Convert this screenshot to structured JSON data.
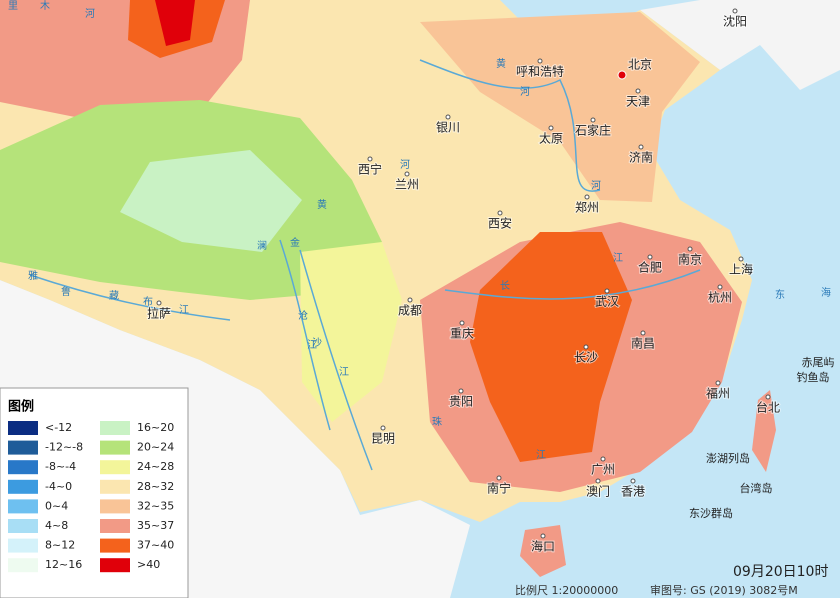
{
  "legend": {
    "title": "图例",
    "items": [
      {
        "label": "<-12",
        "color": "#0b2d82"
      },
      {
        "label": "-12~-8",
        "color": "#1f5c99"
      },
      {
        "label": "-8~-4",
        "color": "#2878c8"
      },
      {
        "label": "-4~0",
        "color": "#3c9be0"
      },
      {
        "label": "0~4",
        "color": "#6ec0f0"
      },
      {
        "label": "4~8",
        "color": "#a8def5"
      },
      {
        "label": "8~12",
        "color": "#d4f2fa"
      },
      {
        "label": "12~16",
        "color": "#eefbf0"
      },
      {
        "label": "16~20",
        "color": "#c9f2c4"
      },
      {
        "label": "20~24",
        "color": "#b5e37a"
      },
      {
        "label": "24~28",
        "color": "#f3f59a"
      },
      {
        "label": "28~32",
        "color": "#fbe6b0"
      },
      {
        "label": "32~35",
        "color": "#f9c497"
      },
      {
        "label": "35~37",
        "color": "#f29a86"
      },
      {
        "label": "37~40",
        "color": "#f4621c"
      },
      {
        "label": ">40",
        "color": "#e0000a"
      }
    ]
  },
  "cities": [
    "沈阳",
    "北京",
    "天津",
    "呼和浩特",
    "石家庄",
    "太原",
    "济南",
    "银川",
    "西宁",
    "兰州",
    "郑州",
    "西安",
    "合肥",
    "南京",
    "上海",
    "杭州",
    "武汉",
    "成都",
    "重庆",
    "长沙",
    "南昌",
    "拉萨",
    "贵阳",
    "福州",
    "台北",
    "昆明",
    "南宁",
    "广州",
    "澳门",
    "香港",
    "海口"
  ],
  "islands": [
    "赤尾屿",
    "钓鱼岛",
    "澎湖列岛",
    "台湾岛",
    "东沙群岛"
  ],
  "water_labels": [
    "黄",
    "河",
    "黄",
    "河",
    "河",
    "雅",
    "鲁",
    "藏",
    "布",
    "江",
    "澜",
    "沧",
    "江",
    "金",
    "沙",
    "江",
    "长",
    "江",
    "珠",
    "江",
    "东",
    "海",
    "里",
    "木",
    "河"
  ],
  "footer": {
    "scale": "比例尺 1:20000000",
    "review": "审图号: GS (2019) 3082号M",
    "time": "09月20日10时"
  }
}
